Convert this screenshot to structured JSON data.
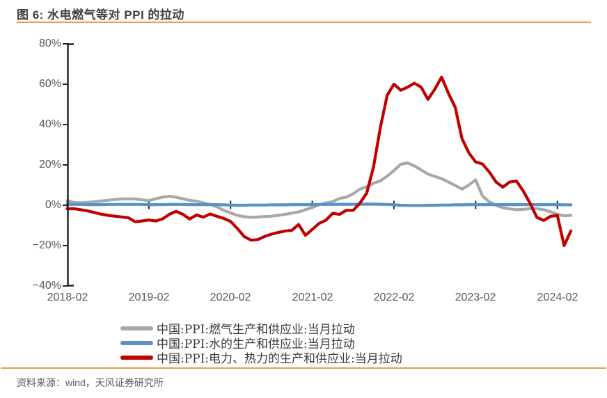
{
  "figure": {
    "title": "图 6: 水电燃气等对 PPI 的拉动",
    "source": "资料来源：wind，天风证券研究所"
  },
  "colors": {
    "accent_orange": "#eb9d4d",
    "axis_black": "#262626",
    "label_gray": "#595959",
    "title_gray": "#3f3f3f"
  },
  "chart_data": {
    "type": "line",
    "title": "图 6: 水电燃气等对 PPI 的拉动",
    "y_unit": "%",
    "ylim": [
      -40,
      80
    ],
    "grid": false,
    "legend_position": "bottom",
    "y_ticks": [
      80,
      60,
      40,
      20,
      0,
      -20,
      -40
    ],
    "y_tick_labels": [
      "80%",
      "60%",
      "40%",
      "20%",
      "0%",
      "−20%",
      "−40%"
    ],
    "x_tick_labels": [
      "2018-02",
      "2019-02",
      "2020-02",
      "2021-02",
      "2022-02",
      "2023-02",
      "2024-02"
    ],
    "x": [
      "2018-02",
      "2018-03",
      "2018-04",
      "2018-05",
      "2018-06",
      "2018-07",
      "2018-08",
      "2018-09",
      "2018-10",
      "2018-11",
      "2018-12",
      "2019-01",
      "2019-02",
      "2019-03",
      "2019-04",
      "2019-05",
      "2019-06",
      "2019-07",
      "2019-08",
      "2019-09",
      "2019-10",
      "2019-11",
      "2019-12",
      "2020-01",
      "2020-02",
      "2020-03",
      "2020-04",
      "2020-05",
      "2020-06",
      "2020-07",
      "2020-08",
      "2020-09",
      "2020-10",
      "2020-11",
      "2020-12",
      "2021-01",
      "2021-02",
      "2021-03",
      "2021-04",
      "2021-05",
      "2021-06",
      "2021-07",
      "2021-08",
      "2021-09",
      "2021-10",
      "2021-11",
      "2021-12",
      "2022-01",
      "2022-02",
      "2022-03",
      "2022-04",
      "2022-05",
      "2022-06",
      "2022-07",
      "2022-08",
      "2022-09",
      "2022-10",
      "2022-11",
      "2022-12",
      "2023-01",
      "2023-02",
      "2023-03",
      "2023-04",
      "2023-05",
      "2023-06",
      "2023-07",
      "2023-08",
      "2023-09",
      "2023-10",
      "2023-11",
      "2023-12",
      "2024-01",
      "2024-02",
      "2024-03",
      "2024-04"
    ],
    "series": [
      {
        "name": "中国:PPI:燃气生产和供应业:当月拉动",
        "color": "#a8a8a8",
        "values": [
          2.3,
          1.4,
          1.2,
          1.4,
          1.8,
          2.1,
          2.5,
          2.9,
          3.1,
          3.2,
          3.1,
          2.7,
          2.3,
          3.2,
          4.0,
          4.5,
          4.0,
          3.2,
          2.5,
          2.0,
          1.2,
          0.4,
          -0.8,
          -2.5,
          -3.8,
          -5.0,
          -5.7,
          -6.0,
          -5.8,
          -5.6,
          -5.4,
          -5.0,
          -4.5,
          -3.9,
          -3.3,
          -2.2,
          -1.1,
          0.2,
          1.1,
          1.8,
          3.4,
          4.0,
          5.7,
          8.0,
          9.2,
          10.9,
          12.1,
          14.4,
          17.2,
          20.3,
          21.0,
          19.5,
          17.5,
          15.5,
          14.3,
          13.2,
          11.5,
          9.8,
          8.0,
          10.0,
          12.6,
          4.6,
          1.7,
          0.0,
          -1.2,
          -1.8,
          -2.2,
          -2.0,
          -1.7,
          -1.7,
          -2.2,
          -3.2,
          -4.5,
          -5.2,
          -5.0
        ]
      },
      {
        "name": "中国:PPI:水的生产和供应业:当月拉动",
        "color": "#5992c8",
        "values": [
          0.5,
          0.4,
          0.4,
          0.3,
          0.3,
          0.3,
          0.4,
          0.4,
          0.4,
          0.4,
          0.4,
          0.4,
          0.3,
          0.3,
          0.3,
          0.4,
          0.4,
          0.4,
          0.3,
          0.3,
          0.3,
          0.3,
          0.3,
          0.2,
          0.1,
          0.0,
          0.0,
          0.1,
          0.1,
          0.1,
          0.2,
          0.2,
          0.2,
          0.3,
          0.3,
          0.3,
          0.3,
          0.4,
          0.4,
          0.4,
          0.5,
          0.5,
          0.5,
          0.5,
          0.6,
          0.6,
          0.5,
          0.4,
          0.2,
          0.0,
          -0.1,
          -0.1,
          -0.1,
          0.0,
          0.0,
          0.1,
          0.1,
          0.2,
          0.2,
          0.3,
          0.3,
          0.3,
          0.3,
          0.3,
          0.3,
          0.3,
          0.3,
          0.3,
          0.3,
          0.3,
          0.3,
          0.3,
          0.3,
          0.2,
          0.2
        ]
      },
      {
        "name": "中国:PPI:电力、热力的生产和供应业:当月拉动",
        "color": "#c00000",
        "values": [
          -1.8,
          -1.7,
          -2.2,
          -2.8,
          -3.6,
          -4.4,
          -5.0,
          -5.4,
          -5.8,
          -6.2,
          -8.2,
          -7.8,
          -7.3,
          -7.8,
          -6.8,
          -4.5,
          -3.0,
          -4.5,
          -6.8,
          -4.8,
          -5.9,
          -4.3,
          -5.5,
          -6.5,
          -8.0,
          -11.5,
          -15.5,
          -17.3,
          -17.0,
          -15.5,
          -14.3,
          -13.5,
          -12.8,
          -12.4,
          -9.5,
          -14.9,
          -12.0,
          -9.0,
          -7.4,
          -4.0,
          -4.5,
          -2.5,
          -2.5,
          1.0,
          6.0,
          19.0,
          38.5,
          54.5,
          60.0,
          57.0,
          58.5,
          60.5,
          58.5,
          52.5,
          57.5,
          63.5,
          55.5,
          48.5,
          33.0,
          26.0,
          21.5,
          20.5,
          16.5,
          11.5,
          9.0,
          11.5,
          12.0,
          7.0,
          1.0,
          -6.0,
          -7.5,
          -5.5,
          -5.0,
          -20.0,
          -12.7
        ]
      }
    ]
  }
}
